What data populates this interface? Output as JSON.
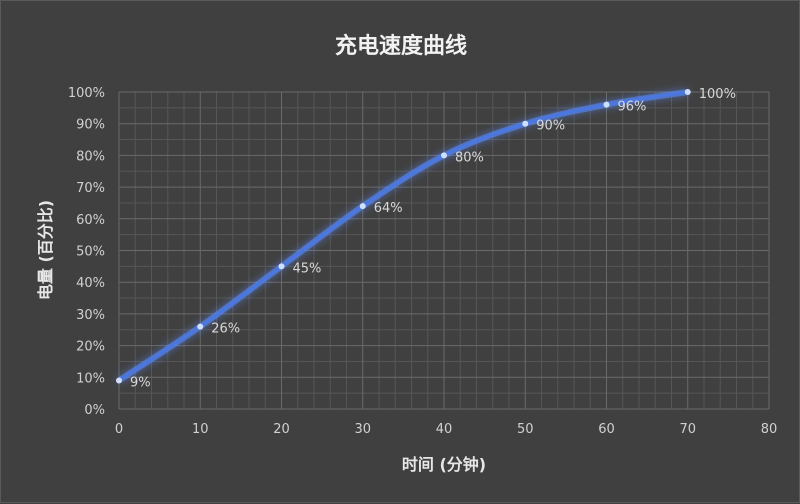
{
  "chart_data": {
    "type": "line",
    "title": "充电速度曲线",
    "xlabel": "时间 (分钟)",
    "ylabel": "电量 (百分比)",
    "x": [
      0,
      10,
      20,
      30,
      40,
      50,
      60,
      70
    ],
    "series": [
      {
        "values": [
          9,
          26,
          45,
          64,
          80,
          90,
          96,
          100
        ],
        "data_labels": [
          "9%",
          "26%",
          "45%",
          "64%",
          "80%",
          "90%",
          "96%",
          "100%"
        ]
      }
    ],
    "xlim": [
      0,
      80
    ],
    "ylim": [
      0,
      100
    ],
    "x_ticks": [
      "0",
      "10",
      "20",
      "30",
      "40",
      "50",
      "60",
      "70",
      "80"
    ],
    "y_ticks": [
      "0%",
      "10%",
      "20%",
      "30%",
      "40%",
      "50%",
      "60%",
      "70%",
      "80%",
      "90%",
      "100%"
    ],
    "grid": "major and minor",
    "smooth": true,
    "legend": "none",
    "colors": {
      "background": "#404040",
      "line": "#4a78e0",
      "glow": "#5b8cff",
      "marker": "#cfe0ff",
      "grid_major": "#6a6a6a",
      "grid_minor": "#565656"
    }
  }
}
